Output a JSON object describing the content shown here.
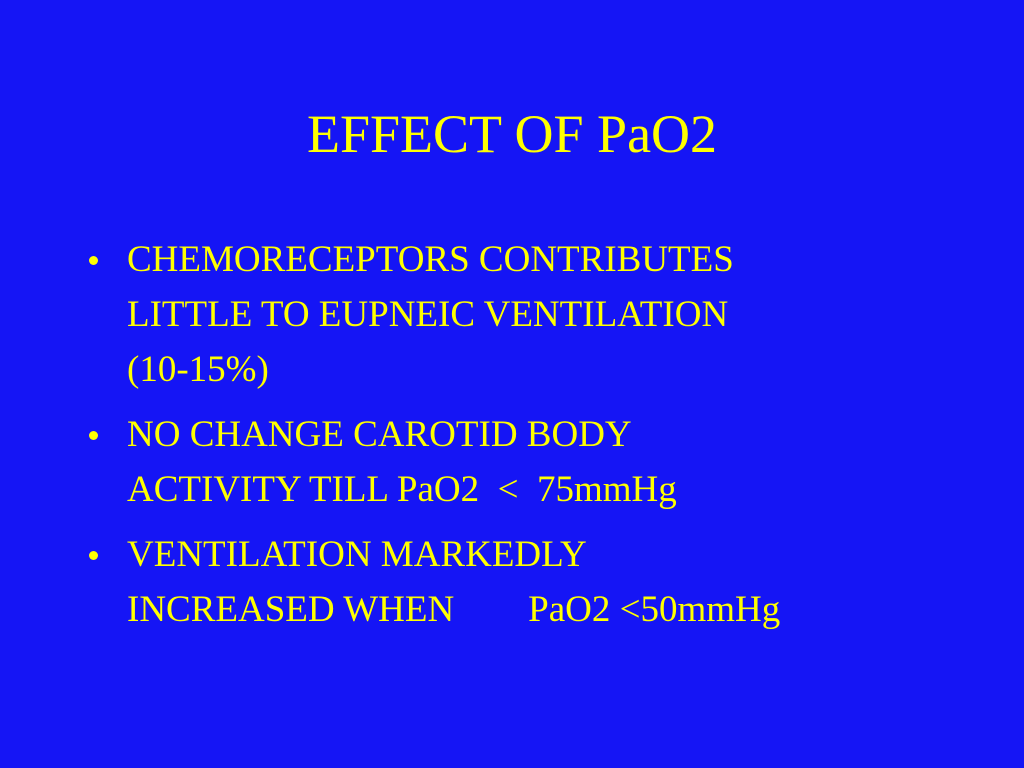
{
  "slide": {
    "title": "EFFECT OF PaO2",
    "bullets": [
      {
        "lines": [
          "CHEMORECEPTORS CONTRIBUTES",
          "LITTLE TO EUPNEIC VENTILATION",
          "(10-15%)"
        ]
      },
      {
        "lines": [
          "NO CHANGE CAROTID BODY",
          "ACTIVITY TILL PaO2  <  75mmHg"
        ]
      },
      {
        "lines": [
          "VENTILATION MARKEDLY",
          "INCREASED WHEN        PaO2 <50mmHg"
        ]
      }
    ]
  }
}
